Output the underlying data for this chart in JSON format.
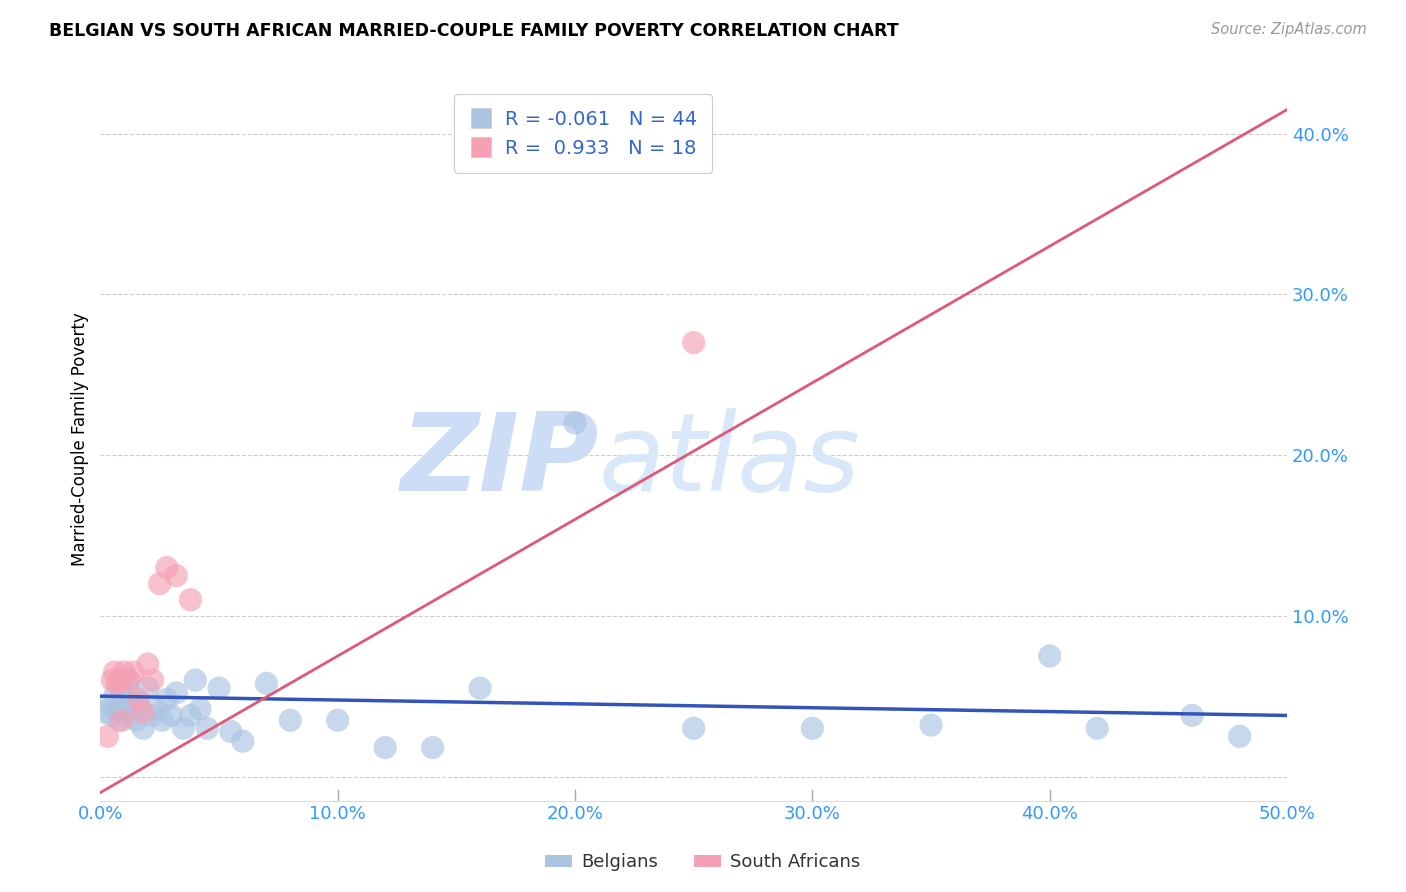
{
  "title": "BELGIAN VS SOUTH AFRICAN MARRIED-COUPLE FAMILY POVERTY CORRELATION CHART",
  "source": "Source: ZipAtlas.com",
  "ylabel": "Married-Couple Family Poverty",
  "xlim": [
    0.0,
    0.5
  ],
  "ylim": [
    -0.015,
    0.435
  ],
  "xticks": [
    0.0,
    0.1,
    0.2,
    0.3,
    0.4,
    0.5
  ],
  "yticks": [
    0.0,
    0.1,
    0.2,
    0.3,
    0.4
  ],
  "ytick_labels": [
    "",
    "10.0%",
    "20.0%",
    "30.0%",
    "40.0%"
  ],
  "xtick_labels": [
    "0.0%",
    "10.0%",
    "20.0%",
    "30.0%",
    "40.0%",
    "50.0%"
  ],
  "blue_color": "#aac4e2",
  "blue_line_color": "#3355bb",
  "pink_color": "#f5a0b5",
  "pink_line_color": "#e05878",
  "legend_blue_R": "-0.061",
  "legend_blue_N": "44",
  "legend_pink_R": "0.933",
  "legend_pink_N": "18",
  "watermark_zip": "ZIP",
  "watermark_atlas": "atlas",
  "legend_label_belgians": "Belgians",
  "legend_label_south_africans": "South Africans",
  "blue_scatter_x": [
    0.002,
    0.004,
    0.005,
    0.006,
    0.007,
    0.008,
    0.009,
    0.01,
    0.011,
    0.012,
    0.013,
    0.014,
    0.015,
    0.016,
    0.018,
    0.02,
    0.022,
    0.024,
    0.026,
    0.028,
    0.03,
    0.032,
    0.035,
    0.038,
    0.04,
    0.042,
    0.045,
    0.05,
    0.055,
    0.06,
    0.07,
    0.08,
    0.1,
    0.12,
    0.14,
    0.16,
    0.2,
    0.25,
    0.3,
    0.35,
    0.4,
    0.42,
    0.46,
    0.48
  ],
  "blue_scatter_y": [
    0.04,
    0.045,
    0.038,
    0.05,
    0.042,
    0.035,
    0.055,
    0.048,
    0.038,
    0.06,
    0.042,
    0.05,
    0.035,
    0.045,
    0.03,
    0.055,
    0.038,
    0.042,
    0.035,
    0.048,
    0.038,
    0.052,
    0.03,
    0.038,
    0.06,
    0.042,
    0.03,
    0.055,
    0.028,
    0.022,
    0.058,
    0.035,
    0.035,
    0.018,
    0.018,
    0.055,
    0.22,
    0.03,
    0.03,
    0.032,
    0.075,
    0.03,
    0.038,
    0.025
  ],
  "pink_scatter_x": [
    0.003,
    0.005,
    0.006,
    0.007,
    0.008,
    0.009,
    0.01,
    0.012,
    0.014,
    0.016,
    0.018,
    0.02,
    0.022,
    0.025,
    0.028,
    0.032,
    0.038,
    0.25
  ],
  "pink_scatter_y": [
    0.025,
    0.06,
    0.065,
    0.058,
    0.06,
    0.035,
    0.065,
    0.06,
    0.065,
    0.048,
    0.04,
    0.07,
    0.06,
    0.12,
    0.13,
    0.125,
    0.11,
    0.27
  ],
  "pink_line_x0": 0.0,
  "pink_line_x1": 0.5,
  "pink_line_y0": -0.01,
  "pink_line_y1": 0.415,
  "blue_line_x0": 0.0,
  "blue_line_x1": 0.5,
  "blue_line_y0": 0.05,
  "blue_line_y1": 0.038
}
